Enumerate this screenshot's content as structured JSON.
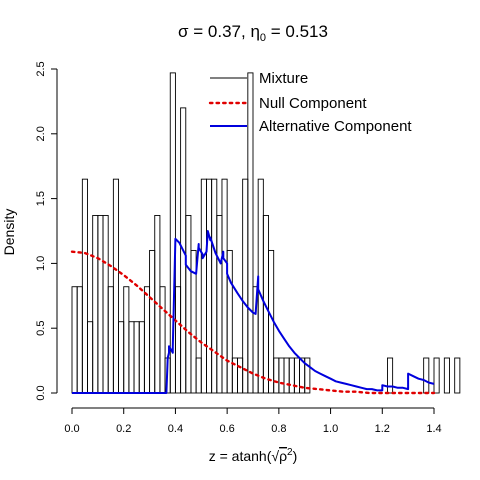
{
  "chart_data": {
    "type": "bar",
    "title_parts": {
      "a": "σ = 0.37, ",
      "eta": "η",
      "sub": "0",
      "b": " = 0.513"
    },
    "xlabel_parts": {
      "prefix": "z = atanh(",
      "rho": "ρ",
      "sup": "2",
      "suffix": ")"
    },
    "ylabel": "Density",
    "xlim": [
      0,
      1.4
    ],
    "ylim": [
      0,
      2.5
    ],
    "x_ticks": [
      "0.0",
      "0.2",
      "0.4",
      "0.6",
      "0.8",
      "1.0",
      "1.2",
      "1.4"
    ],
    "y_ticks": [
      "0.0",
      "0.5",
      "1.0",
      "1.5",
      "2.0",
      "2.5"
    ],
    "bin_width": 0.02,
    "bin_start": 0.0,
    "histogram": [
      0.82,
      0.82,
      1.65,
      0.55,
      1.37,
      1.37,
      1.37,
      0.82,
      1.65,
      0.55,
      0.82,
      0.55,
      0.55,
      0.55,
      0.82,
      1.1,
      1.37,
      0.82,
      0.27,
      2.47,
      0.82,
      2.2,
      1.37,
      1.1,
      0.27,
      1.65,
      1.65,
      1.65,
      1.37,
      1.65,
      1.1,
      0.27,
      0.27,
      1.65,
      2.47,
      0.82,
      1.65,
      1.37,
      1.1,
      0.27,
      0.27,
      0.27,
      0.27,
      0.27,
      0.27,
      0.27,
      0.0,
      0.0,
      0.0,
      0.0,
      0.0,
      0.0,
      0.0,
      0.0,
      0.0,
      0.0,
      0.0,
      0.0,
      0.0,
      0.0,
      0.0,
      0.27,
      0.0,
      0.0,
      0.0,
      0.0,
      0.0,
      0.0,
      0.27,
      0.0,
      0.27,
      0.0,
      0.27,
      0.0,
      0.27,
      0.0
    ],
    "series": [
      {
        "name": "Mixture",
        "color": "#000000",
        "style": "histogram"
      },
      {
        "name": "Null Component",
        "color": "#e00000",
        "style": "dotted",
        "x": [
          0.0,
          0.05,
          0.1,
          0.15,
          0.2,
          0.25,
          0.3,
          0.35,
          0.4,
          0.45,
          0.5,
          0.55,
          0.6,
          0.65,
          0.7,
          0.75,
          0.8,
          0.85,
          0.9,
          0.95,
          1.0,
          1.05,
          1.1,
          1.15,
          1.2,
          1.25,
          1.3,
          1.35,
          1.4
        ],
        "y": [
          1.09,
          1.08,
          1.04,
          0.98,
          0.91,
          0.83,
          0.74,
          0.65,
          0.56,
          0.47,
          0.39,
          0.32,
          0.25,
          0.2,
          0.15,
          0.11,
          0.08,
          0.06,
          0.04,
          0.03,
          0.02,
          0.01,
          0.01,
          0.0,
          0.0,
          0.0,
          0.0,
          0.0,
          0.0
        ]
      },
      {
        "name": "Alternative Component",
        "color": "#0000dd",
        "style": "solid",
        "x": [
          0.0,
          0.365,
          0.37,
          0.375,
          0.375,
          0.39,
          0.39,
          0.4,
          0.415,
          0.44,
          0.44,
          0.46,
          0.48,
          0.49,
          0.49,
          0.505,
          0.505,
          0.52,
          0.525,
          0.535,
          0.535,
          0.555,
          0.575,
          0.585,
          0.585,
          0.6,
          0.6,
          0.615,
          0.64,
          0.66,
          0.68,
          0.7,
          0.71,
          0.72,
          0.72,
          0.74,
          0.76,
          0.78,
          0.8,
          0.82,
          0.84,
          0.86,
          0.88,
          0.9,
          0.92,
          0.94,
          0.96,
          0.98,
          1.0,
          1.02,
          1.04,
          1.06,
          1.08,
          1.1,
          1.12,
          1.14,
          1.16,
          1.18,
          1.2,
          1.2,
          1.22,
          1.24,
          1.26,
          1.28,
          1.3,
          1.3,
          1.32,
          1.34,
          1.36,
          1.38,
          1.4
        ],
        "y": [
          0.0,
          0.0,
          0.27,
          0.31,
          0.36,
          0.31,
          0.36,
          1.19,
          1.16,
          1.06,
          0.99,
          0.94,
          0.92,
          1.15,
          1.12,
          1.07,
          1.04,
          1.09,
          1.25,
          1.18,
          1.2,
          1.08,
          1.0,
          1.09,
          1.04,
          1.0,
          0.92,
          0.85,
          0.77,
          0.71,
          0.66,
          0.62,
          0.61,
          0.9,
          0.8,
          0.71,
          0.63,
          0.55,
          0.48,
          0.42,
          0.36,
          0.31,
          0.27,
          0.23,
          0.2,
          0.17,
          0.15,
          0.13,
          0.11,
          0.09,
          0.08,
          0.07,
          0.06,
          0.05,
          0.04,
          0.03,
          0.03,
          0.02,
          0.02,
          0.06,
          0.05,
          0.05,
          0.04,
          0.04,
          0.03,
          0.15,
          0.13,
          0.11,
          0.1,
          0.08,
          0.07
        ]
      }
    ],
    "legend_position": "top-right",
    "grid": false,
    "box": false
  }
}
